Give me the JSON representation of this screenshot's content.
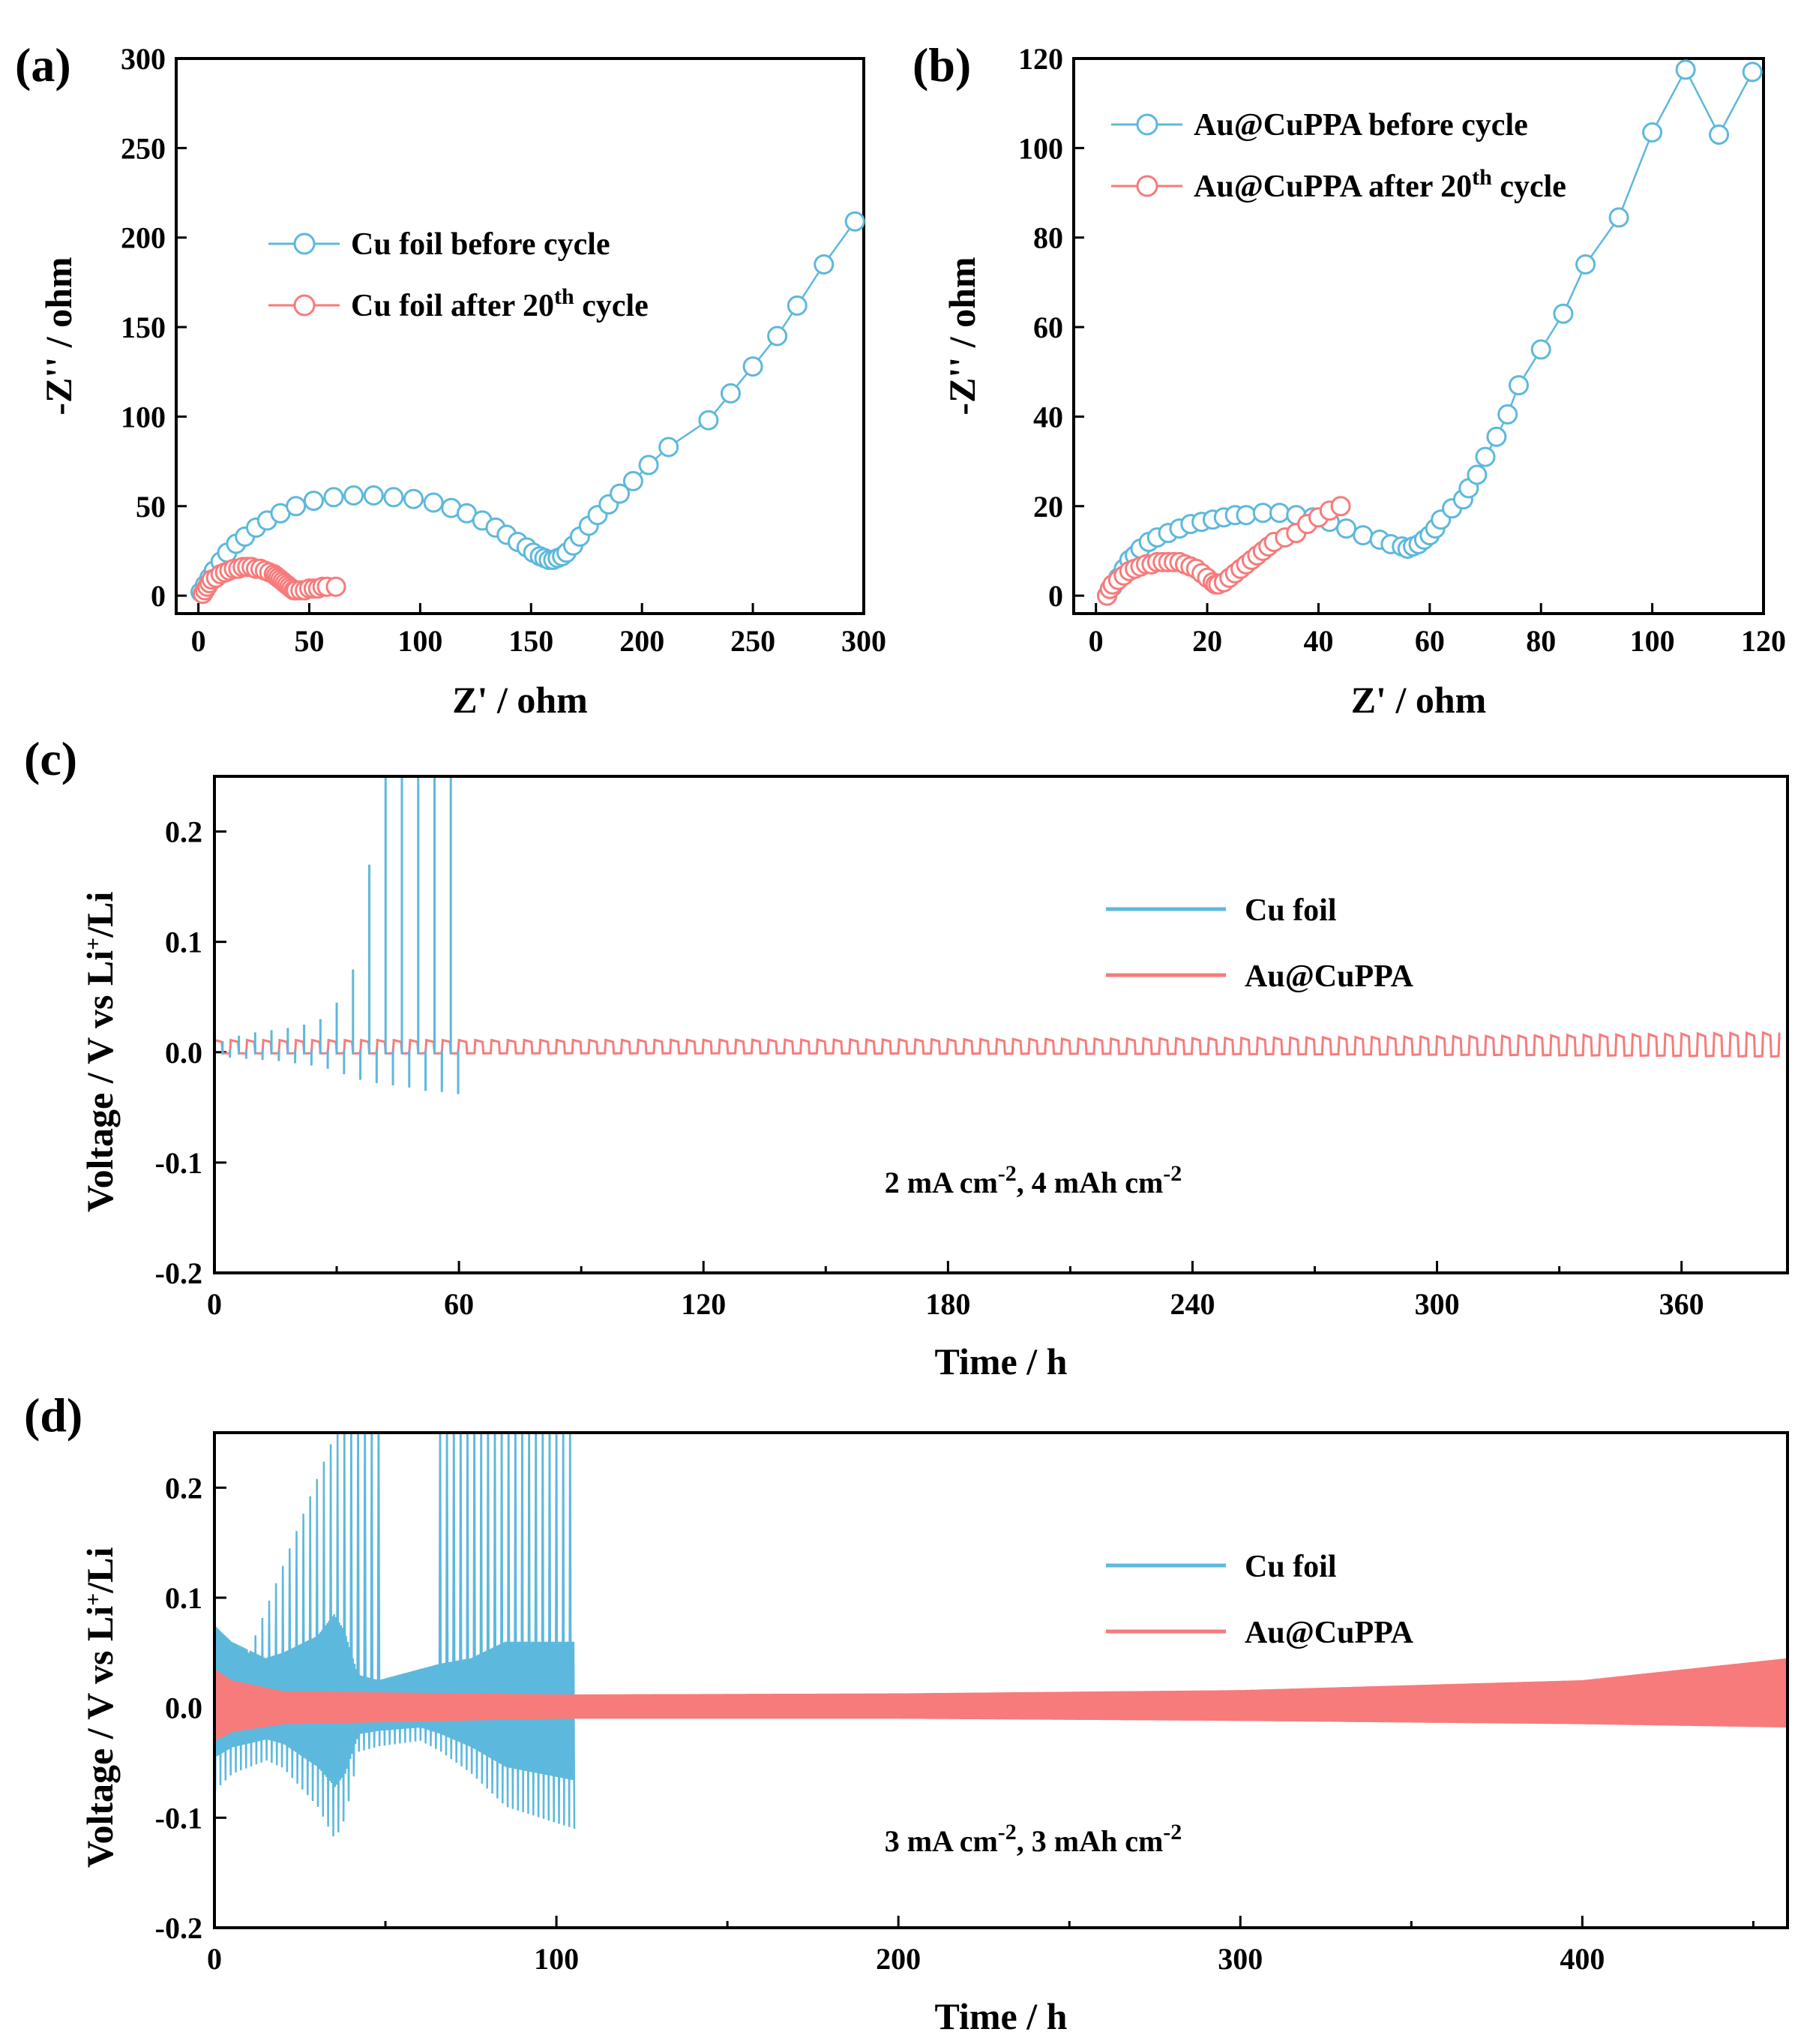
{
  "chart_data": [
    {
      "id": "a",
      "type": "scatter",
      "panel_label": "(a)",
      "xlabel": "Z' / ohm",
      "ylabel": "-Z'' / ohm",
      "xlim": [
        -10,
        300
      ],
      "ylim": [
        -10,
        300
      ],
      "xticks": [
        0,
        50,
        100,
        150,
        200,
        250,
        300
      ],
      "yticks": [
        0,
        50,
        100,
        150,
        200,
        250,
        300
      ],
      "legend_position": "upper-center",
      "series": [
        {
          "name": "Cu foil before cycle",
          "legend": {
            "main": "Cu foil before cycle",
            "sup": "",
            "tail": ""
          },
          "color": "#5db8dd",
          "marker": "open-circle",
          "points": [
            [
              1,
              2
            ],
            [
              3,
              6
            ],
            [
              5,
              10
            ],
            [
              7,
              14
            ],
            [
              10,
              19
            ],
            [
              13,
              24
            ],
            [
              17,
              29
            ],
            [
              21,
              33
            ],
            [
              26,
              38
            ],
            [
              31,
              42
            ],
            [
              37,
              46
            ],
            [
              44,
              50
            ],
            [
              52,
              53
            ],
            [
              61,
              55
            ],
            [
              70,
              56
            ],
            [
              79,
              56
            ],
            [
              88,
              55
            ],
            [
              97,
              54
            ],
            [
              106,
              52
            ],
            [
              114,
              49
            ],
            [
              121,
              46
            ],
            [
              128,
              42
            ],
            [
              134,
              38
            ],
            [
              139,
              34
            ],
            [
              144,
              30
            ],
            [
              148,
              27
            ],
            [
              151,
              24
            ],
            [
              154,
              22
            ],
            [
              156,
              21
            ],
            [
              158,
              20
            ],
            [
              160,
              20
            ],
            [
              162,
              21
            ],
            [
              164,
              22
            ],
            [
              166,
              24
            ],
            [
              169,
              28
            ],
            [
              172,
              33
            ],
            [
              176,
              39
            ],
            [
              180,
              45
            ],
            [
              185,
              51
            ],
            [
              190,
              57
            ],
            [
              196,
              64
            ],
            [
              203,
              73
            ],
            [
              212,
              83
            ],
            [
              230,
              98
            ],
            [
              240,
              113
            ],
            [
              250,
              128
            ],
            [
              261,
              145
            ],
            [
              270,
              162
            ],
            [
              282,
              185
            ],
            [
              296,
              209
            ]
          ]
        },
        {
          "name": "Cu foil after 20th cycle",
          "legend": {
            "main": "Cu foil after 20",
            "sup": "th",
            "tail": " cycle"
          },
          "color": "#f77b7b",
          "marker": "open-circle",
          "points": [
            [
              2,
              1
            ],
            [
              3,
              3
            ],
            [
              4,
              5
            ],
            [
              5,
              7
            ],
            [
              6,
              9
            ],
            [
              8,
              10
            ],
            [
              10,
              12
            ],
            [
              12,
              13
            ],
            [
              14,
              14
            ],
            [
              16,
              15
            ],
            [
              18,
              15
            ],
            [
              20,
              16
            ],
            [
              22,
              16
            ],
            [
              24,
              16
            ],
            [
              26,
              15
            ],
            [
              28,
              15
            ],
            [
              30,
              14
            ],
            [
              32,
              13
            ],
            [
              34,
              12
            ],
            [
              35,
              11
            ],
            [
              36,
              10
            ],
            [
              37,
              9
            ],
            [
              38,
              8
            ],
            [
              39,
              7
            ],
            [
              40,
              6
            ],
            [
              41,
              5
            ],
            [
              42,
              4
            ],
            [
              43,
              3
            ],
            [
              44,
              3
            ],
            [
              46,
              3
            ],
            [
              48,
              3
            ],
            [
              50,
              4
            ],
            [
              52,
              4
            ],
            [
              54,
              4
            ],
            [
              56,
              5
            ],
            [
              58,
              5
            ],
            [
              62,
              5
            ]
          ]
        }
      ]
    },
    {
      "id": "b",
      "type": "scatter",
      "panel_label": "(b)",
      "xlabel": "Z' / ohm",
      "ylabel": "-Z'' / ohm",
      "xlim": [
        -4,
        120
      ],
      "ylim": [
        -4,
        120
      ],
      "xticks": [
        0,
        20,
        40,
        60,
        80,
        100,
        120
      ],
      "yticks": [
        0,
        20,
        40,
        60,
        80,
        100,
        120
      ],
      "legend_position": "upper-left",
      "series": [
        {
          "name": "Au@CuPPA before cycle",
          "legend": {
            "main": "Au@CuPPA before cycle",
            "sup": "",
            "tail": ""
          },
          "color": "#5db8dd",
          "marker": "open-circle",
          "points": [
            [
              2,
              0
            ],
            [
              3,
              2
            ],
            [
              4,
              4
            ],
            [
              5,
              6
            ],
            [
              6,
              8
            ],
            [
              7,
              9
            ],
            [
              8,
              10.5
            ],
            [
              9.5,
              12
            ],
            [
              11,
              13
            ],
            [
              13,
              14
            ],
            [
              15,
              15
            ],
            [
              17,
              16
            ],
            [
              19,
              16.5
            ],
            [
              21,
              17
            ],
            [
              23,
              17.5
            ],
            [
              25,
              18
            ],
            [
              27,
              18
            ],
            [
              30,
              18.5
            ],
            [
              33,
              18.5
            ],
            [
              36,
              18
            ],
            [
              39,
              17.5
            ],
            [
              42,
              16.5
            ],
            [
              45,
              15
            ],
            [
              48,
              13.5
            ],
            [
              51,
              12.5
            ],
            [
              53,
              11.5
            ],
            [
              55,
              11
            ],
            [
              56,
              10.5
            ],
            [
              57,
              11
            ],
            [
              58,
              11.5
            ],
            [
              59,
              12.5
            ],
            [
              60,
              13.5
            ],
            [
              61,
              15
            ],
            [
              62,
              17
            ],
            [
              64,
              19.5
            ],
            [
              66,
              21.5
            ],
            [
              67,
              24
            ],
            [
              68.5,
              27
            ],
            [
              70,
              31
            ],
            [
              72,
              35.5
            ],
            [
              74,
              40.5
            ],
            [
              76,
              47
            ],
            [
              80,
              55
            ],
            [
              84,
              63
            ],
            [
              88,
              74
            ],
            [
              94,
              84.5
            ],
            [
              100,
              103.5
            ],
            [
              106,
              117.5
            ],
            [
              112,
              103
            ],
            [
              118,
              117
            ]
          ]
        },
        {
          "name": "Au@CuPPA after 20th cycle",
          "legend": {
            "main": "Au@CuPPA after 20",
            "sup": "th",
            "tail": " cycle"
          },
          "color": "#f77b7b",
          "marker": "open-circle",
          "points": [
            [
              2,
              0
            ],
            [
              2.5,
              1.5
            ],
            [
              3,
              2.5
            ],
            [
              4,
              3.5
            ],
            [
              5,
              4.5
            ],
            [
              6,
              5.5
            ],
            [
              7,
              6
            ],
            [
              8,
              6.5
            ],
            [
              9,
              7
            ],
            [
              10,
              7
            ],
            [
              11,
              7.5
            ],
            [
              12,
              7.5
            ],
            [
              13,
              7.5
            ],
            [
              14,
              7.5
            ],
            [
              15,
              7.5
            ],
            [
              16,
              7
            ],
            [
              17,
              6.5
            ],
            [
              18,
              6
            ],
            [
              19,
              5
            ],
            [
              20,
              4
            ],
            [
              21,
              3
            ],
            [
              21.5,
              2.5
            ],
            [
              22,
              2.5
            ],
            [
              23,
              3
            ],
            [
              24,
              4
            ],
            [
              25,
              5
            ],
            [
              26,
              6
            ],
            [
              27,
              7
            ],
            [
              28,
              8
            ],
            [
              29,
              9
            ],
            [
              30,
              10
            ],
            [
              31,
              11
            ],
            [
              32,
              12
            ],
            [
              34,
              13
            ],
            [
              36,
              14
            ],
            [
              38,
              16
            ],
            [
              40,
              17.5
            ],
            [
              42,
              19
            ],
            [
              44,
              20
            ]
          ]
        }
      ]
    },
    {
      "id": "c",
      "type": "line",
      "panel_label": "(c)",
      "xlabel": "Time / h",
      "ylabel_main": "Voltage / V vs Li",
      "ylabel_sup": "+",
      "ylabel_tail": "/Li",
      "xlim": [
        0,
        386
      ],
      "ylim": [
        -0.2,
        0.25
      ],
      "xticks": [
        0,
        60,
        120,
        180,
        240,
        300,
        360
      ],
      "xtick_labels": [
        "0",
        "60",
        "120",
        "180",
        "240",
        "300",
        "360"
      ],
      "minor_xticks": [
        30,
        90,
        150,
        210,
        270,
        330
      ],
      "yticks": [
        -0.2,
        -0.1,
        0.0,
        0.1,
        0.2
      ],
      "ytick_labels": [
        "-0.2",
        "-0.1",
        "0.0",
        "0.1",
        "0.2"
      ],
      "legend_position": "right",
      "annotation": {
        "text": "2 mA cm",
        "sup1": "-2",
        "mid": ", 4 mAh cm",
        "sup2": "-2"
      },
      "series": [
        {
          "name": "Cu foil",
          "color": "#5db8dd",
          "pattern": "spikes",
          "period_h": 4,
          "end_h": 58,
          "peak_top": [
            0.01,
            0.015,
            0.018,
            0.02,
            0.022,
            0.025,
            0.03,
            0.045,
            0.075,
            0.17,
            0.25,
            0.25,
            0.25,
            0.25,
            0.25
          ],
          "peak_bottom": [
            -0.005,
            -0.006,
            -0.007,
            -0.008,
            -0.01,
            -0.012,
            -0.015,
            -0.02,
            -0.025,
            -0.028,
            -0.03,
            -0.032,
            -0.035,
            -0.036,
            -0.038
          ]
        },
        {
          "name": "Au@CuPPA",
          "color": "#f77b7b",
          "pattern": "square-wave",
          "period_h": 4,
          "end_h": 386,
          "high_start": 0.011,
          "high_end": 0.018,
          "low_start": -0.001,
          "low_end": -0.004
        }
      ]
    },
    {
      "id": "d",
      "type": "line",
      "panel_label": "(d)",
      "xlabel": "Time / h",
      "ylabel_main": "Voltage / V vs Li",
      "ylabel_sup": "+",
      "ylabel_tail": "/Li",
      "xlim": [
        0,
        460
      ],
      "ylim": [
        -0.2,
        0.25
      ],
      "xticks": [
        0,
        100,
        200,
        300,
        400
      ],
      "xtick_labels": [
        "0",
        "100",
        "200",
        "300",
        "400"
      ],
      "minor_xticks": [
        50,
        150,
        250,
        350,
        450
      ],
      "yticks": [
        -0.2,
        -0.1,
        0.0,
        0.1,
        0.2
      ],
      "ytick_labels": [
        "-0.2",
        "-0.1",
        "0.0",
        "0.1",
        "0.2"
      ],
      "legend_position": "right",
      "annotation": {
        "text": "3 mA cm",
        "sup1": "-2",
        "mid": ", 3 mAh cm",
        "sup2": "-2"
      },
      "series": [
        {
          "name": "Cu foil",
          "color": "#5db8dd",
          "pattern": "band-with-spikes",
          "period_h": 2,
          "end_h": 105,
          "envelope": [
            [
              0,
              0.075,
              -0.075
            ],
            [
              5,
              0.06,
              -0.06
            ],
            [
              15,
              0.045,
              -0.048
            ],
            [
              20,
              0.05,
              -0.055
            ],
            [
              30,
              0.065,
              -0.09
            ],
            [
              35,
              0.085,
              -0.12
            ],
            [
              38,
              0.07,
              -0.1
            ],
            [
              42,
              0.03,
              -0.04
            ],
            [
              48,
              0.025,
              -0.035
            ],
            [
              60,
              0.035,
              -0.03
            ],
            [
              66,
              0.04,
              -0.04
            ],
            [
              75,
              0.045,
              -0.06
            ],
            [
              85,
              0.06,
              -0.09
            ],
            [
              95,
              0.06,
              -0.1
            ],
            [
              105,
              0.06,
              -0.11
            ]
          ],
          "spike_ranges": [
            [
              10,
              48
            ],
            [
              65,
              105
            ]
          ]
        },
        {
          "name": "Au@CuPPA",
          "color": "#f77b7b",
          "pattern": "band",
          "end_h": 460,
          "envelope": [
            [
              0,
              0.035,
              -0.03
            ],
            [
              5,
              0.025,
              -0.022
            ],
            [
              20,
              0.015,
              -0.015
            ],
            [
              100,
              0.012,
              -0.01
            ],
            [
              200,
              0.013,
              -0.01
            ],
            [
              300,
              0.016,
              -0.012
            ],
            [
              400,
              0.025,
              -0.015
            ],
            [
              460,
              0.045,
              -0.018
            ]
          ]
        }
      ]
    }
  ]
}
